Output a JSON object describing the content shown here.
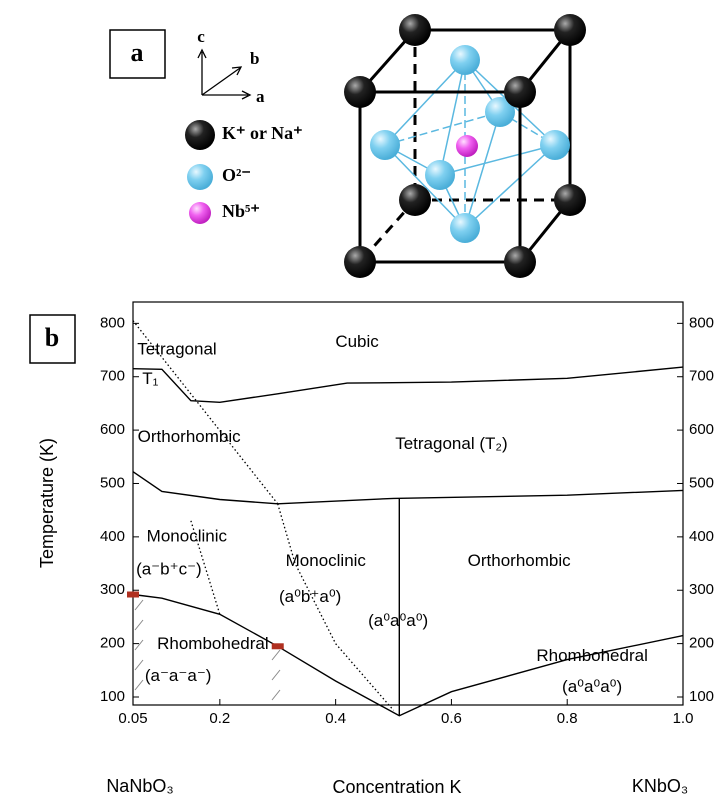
{
  "panel_a": {
    "label": "a",
    "axes": [
      "c",
      "b",
      "a"
    ],
    "legend": [
      "K⁺ or Na⁺",
      "O²⁻",
      "Nb⁵⁺"
    ]
  },
  "chart_data": {
    "type": "line",
    "label": "b",
    "ylabel": "Temperature (K)",
    "xlabel": "Concentration K",
    "x_end_labels": [
      "NaNbO₃",
      "KNbO₃"
    ],
    "xlim": [
      0.05,
      1.0
    ],
    "ylim": [
      85,
      840
    ],
    "y2lim": [
      85,
      840
    ],
    "xticks": [
      0.05,
      0.2,
      0.4,
      0.6,
      0.8,
      {
        "value": 1,
        "label": "1.0"
      }
    ],
    "yticks": [
      100,
      200,
      300,
      400,
      500,
      600,
      700,
      800
    ],
    "y2ticks": [
      100,
      200,
      300,
      400,
      500,
      600,
      700,
      800
    ],
    "series": [
      {
        "color": "#000000",
        "style": "solid",
        "x": [
          0.05,
          0.1,
          0.15,
          0.2,
          0.3,
          0.42,
          0.6,
          0.8,
          1.0
        ],
        "values": [
          715,
          714,
          655,
          652,
          668,
          688,
          690,
          697,
          718
        ]
      },
      {
        "color": "#000000",
        "style": "solid",
        "x": [
          0.05,
          0.1,
          0.2,
          0.3,
          0.5,
          0.8,
          1.0
        ],
        "values": [
          522,
          485,
          470,
          462,
          472,
          478,
          487
        ]
      },
      {
        "color": "#000000",
        "style": "solid",
        "x": [
          0.05,
          0.1,
          0.2,
          0.3,
          0.4,
          0.51,
          0.6,
          0.8,
          1.0
        ],
        "values": [
          292,
          285,
          255,
          195,
          130,
          65,
          110,
          170,
          215
        ]
      },
      {
        "color": "#000000",
        "style": "solid",
        "x": [
          0.51,
          0.51
        ],
        "values": [
          65,
          472
        ]
      },
      {
        "color": "#000000",
        "style": "dotted",
        "x": [
          0.05,
          0.3
        ],
        "values": [
          805,
          462
        ]
      },
      {
        "color": "#000000",
        "style": "dotted",
        "x": [
          0.15,
          0.2
        ],
        "values": [
          430,
          255
        ]
      },
      {
        "color": "#000000",
        "style": "dotted",
        "x": [
          0.3,
          0.33,
          0.4,
          0.5
        ],
        "values": [
          462,
          350,
          200,
          75
        ]
      }
    ],
    "markers": {
      "color": "#b03020",
      "x": [
        0.05,
        0.3
      ],
      "values": [
        292,
        195
      ]
    },
    "annotations": [
      {
        "text": "Tetragonal",
        "x": 0.126,
        "y": 750
      },
      {
        "text": "T₁",
        "x": 0.08,
        "y": 695
      },
      {
        "text": "Cubic",
        "x": 0.437,
        "y": 764
      },
      {
        "text": "Orthorhombic",
        "x": 0.147,
        "y": 586
      },
      {
        "text": "Tetragonal (T₂)",
        "x": 0.6,
        "y": 573
      },
      {
        "text": "Monoclinic",
        "x": 0.143,
        "y": 400
      },
      {
        "text": "(a⁻b⁺c⁻)",
        "x": 0.112,
        "y": 338
      },
      {
        "text": "Monoclinic",
        "x": 0.383,
        "y": 354
      },
      {
        "text": "(a⁰b⁺a⁰)",
        "x": 0.356,
        "y": 286
      },
      {
        "text": "Orthorhombic",
        "x": 0.717,
        "y": 354
      },
      {
        "text": "(a⁰a⁰a⁰)",
        "x": 0.508,
        "y": 241
      },
      {
        "text": "Rhombohedral",
        "x": 0.188,
        "y": 198
      },
      {
        "text": "(a⁻a⁻a⁻)",
        "x": 0.128,
        "y": 138
      },
      {
        "text": "Rhombohedral",
        "x": 0.843,
        "y": 176
      },
      {
        "text": "(a⁰a⁰a⁰)",
        "x": 0.843,
        "y": 118
      }
    ]
  }
}
